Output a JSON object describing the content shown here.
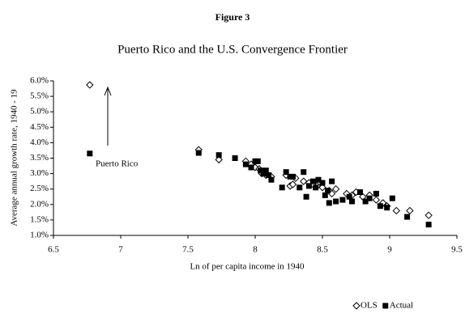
{
  "chart_data": {
    "type": "scatter",
    "figure_label": "Figure 3",
    "title": "Puerto Rico and the U.S. Convergence Frontier",
    "xlabel": "Ln of per capita income in 1940",
    "ylabel": "Average annual growth rate, 1940 - 19",
    "annotation": "Puerto Rico",
    "xlim": [
      6.5,
      9.5
    ],
    "xticks": [
      6.5,
      7,
      7.5,
      8,
      8.5,
      9,
      9.5
    ],
    "ylim": [
      1.0,
      6.0
    ],
    "yticks": [
      {
        "value": 1.0,
        "label": "1.0%"
      },
      {
        "value": 1.5,
        "label": "1.5%"
      },
      {
        "value": 2.0,
        "label": "2.0%"
      },
      {
        "value": 2.5,
        "label": "2.5%"
      },
      {
        "value": 3.0,
        "label": "3.0%"
      },
      {
        "value": 3.5,
        "label": "3.5%"
      },
      {
        "value": 4.0,
        "label": "4.0%"
      },
      {
        "value": 4.5,
        "label": "4.5%"
      },
      {
        "value": 5.0,
        "label": "5.0%"
      },
      {
        "value": 5.5,
        "label": "5.5%"
      },
      {
        "value": 6.0,
        "label": "6.0%"
      }
    ],
    "grid": false,
    "legend": "bottom-right",
    "series": [
      {
        "name": "OLS",
        "color": "#000000",
        "marker": "diamond-open",
        "x": [
          6.77,
          7.58,
          7.73,
          7.93,
          7.97,
          8.0,
          8.03,
          8.05,
          8.08,
          8.12,
          8.23,
          8.26,
          8.28,
          8.3,
          8.36,
          8.4,
          8.43,
          8.46,
          8.5,
          8.55,
          8.57,
          8.6,
          8.68,
          8.72,
          8.75,
          8.8,
          8.85,
          8.9,
          8.95,
          8.98,
          9.05,
          9.15,
          9.29
        ],
        "values": [
          5.87,
          3.77,
          3.45,
          3.4,
          3.3,
          3.2,
          3.15,
          3.0,
          2.95,
          2.9,
          2.95,
          2.6,
          2.65,
          2.85,
          2.75,
          2.7,
          2.65,
          2.6,
          2.55,
          2.45,
          2.35,
          2.5,
          2.35,
          2.3,
          2.4,
          2.25,
          2.3,
          2.15,
          2.05,
          1.95,
          1.8,
          1.8,
          1.65
        ]
      },
      {
        "name": "Actual",
        "color": "#000000",
        "marker": "square-filled",
        "x": [
          6.77,
          7.58,
          7.73,
          7.85,
          7.93,
          7.97,
          8.0,
          8.02,
          8.04,
          8.06,
          8.08,
          8.1,
          8.12,
          8.2,
          8.23,
          8.26,
          8.28,
          8.33,
          8.36,
          8.38,
          8.4,
          8.43,
          8.45,
          8.47,
          8.5,
          8.52,
          8.54,
          8.55,
          8.57,
          8.6,
          8.65,
          8.7,
          8.72,
          8.78,
          8.82,
          8.85,
          8.9,
          8.93,
          8.98,
          9.02,
          9.13,
          9.29
        ],
        "values": [
          3.65,
          3.67,
          3.6,
          3.5,
          3.3,
          3.2,
          3.4,
          3.4,
          3.1,
          3.0,
          3.1,
          2.95,
          2.8,
          2.55,
          3.05,
          2.9,
          2.9,
          2.55,
          3.05,
          2.25,
          2.6,
          2.75,
          2.55,
          2.8,
          2.7,
          2.3,
          2.45,
          2.05,
          2.75,
          2.1,
          2.15,
          2.25,
          2.1,
          2.4,
          2.1,
          2.2,
          2.35,
          1.95,
          1.9,
          2.2,
          1.6,
          1.35
        ]
      }
    ]
  }
}
